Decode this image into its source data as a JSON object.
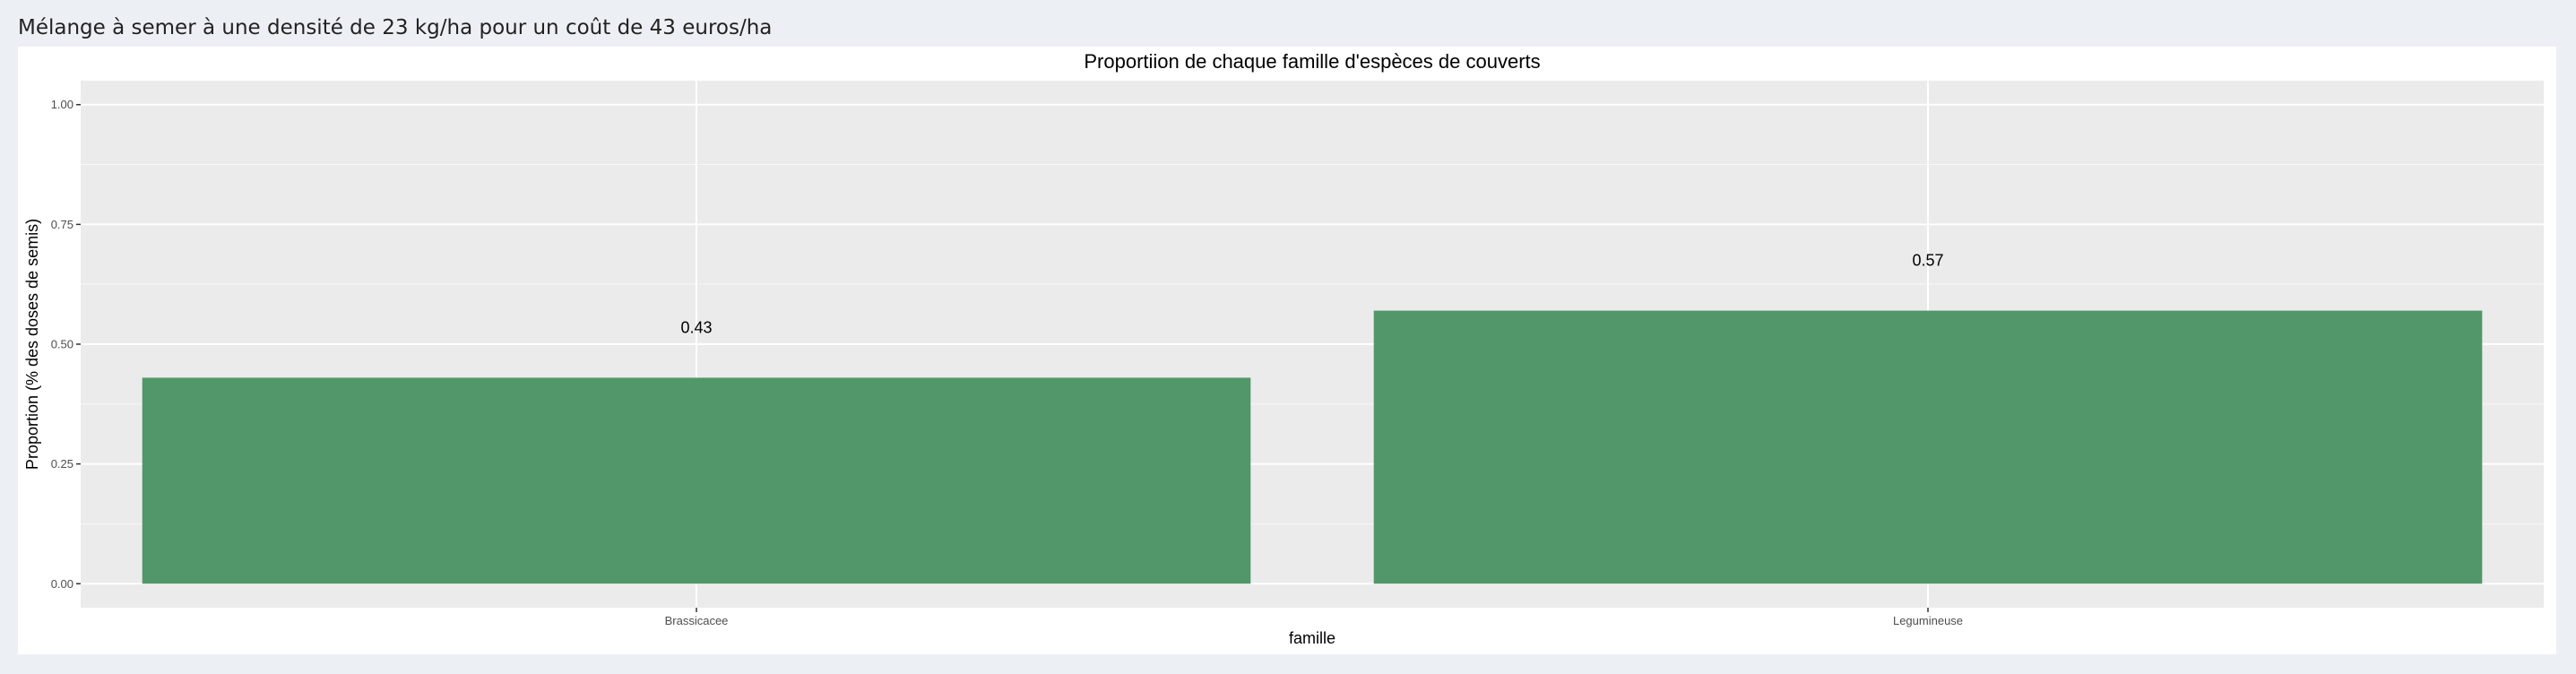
{
  "page": {
    "header_text": "Mélange à semer à une densité de 23 kg/ha pour un coût de 43 euros/ha"
  },
  "colors": {
    "page_background": "#ecf0f5",
    "panel_background": "#ffffff",
    "plot_background": "#ebebeb",
    "grid_major": "#ffffff",
    "bar_fill": "#52976a",
    "text": "#000000",
    "tick_text": "#4d4d4d"
  },
  "chart_data": {
    "type": "bar",
    "title": "Proportiion de chaque famille d'espèces de couverts",
    "xlabel": "famille",
    "ylabel": "Proportion (% des doses de semis)",
    "categories": [
      "Brassicacee",
      "Legumineuse"
    ],
    "values": [
      0.43,
      0.57
    ],
    "data_labels": [
      "0.43",
      "0.57"
    ],
    "ylim": [
      -0.05,
      1.05
    ],
    "yticks": [
      0.0,
      0.25,
      0.5,
      0.75,
      1.0
    ],
    "ytick_labels": [
      "0.00",
      "0.25",
      "0.50",
      "0.75",
      "1.00"
    ],
    "grid": true,
    "legend": "none"
  }
}
